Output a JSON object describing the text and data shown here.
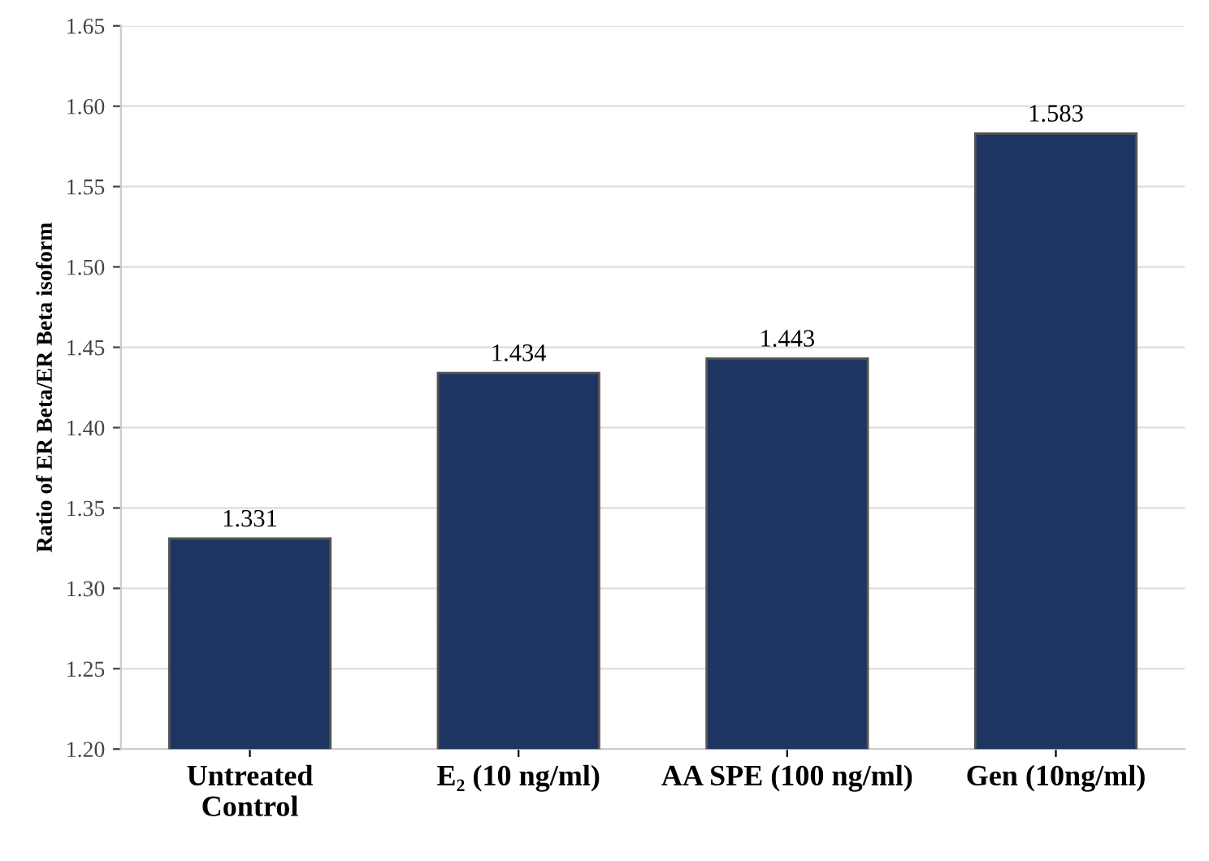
{
  "chart_data": {
    "type": "bar",
    "ylabel": "Ratio of ER Beta/ER Beta isoform",
    "categories": [
      "Untreated\nControl",
      "E₂ (10 ng/ml)",
      "AA SPE (100 ng/ml)",
      "Gen (10ng/ml)"
    ],
    "values": [
      1.331,
      1.434,
      1.443,
      1.583
    ],
    "color": "#1d3560",
    "ylim": [
      1.2,
      1.65
    ],
    "yticks": [
      {
        "value": 1.2,
        "label": "1.20"
      },
      {
        "value": 1.25,
        "label": "1.25"
      },
      {
        "value": 1.3,
        "label": "1.30"
      },
      {
        "value": 1.35,
        "label": "1.35"
      },
      {
        "value": 1.4,
        "label": "1.40"
      },
      {
        "value": 1.45,
        "label": "1.45"
      },
      {
        "value": 1.5,
        "label": "1.50"
      },
      {
        "value": 1.55,
        "label": "1.55"
      },
      {
        "value": 1.6,
        "label": "1.60"
      },
      {
        "value": 1.65,
        "label": "1.65"
      }
    ],
    "grid": "y",
    "data_labels": true
  }
}
